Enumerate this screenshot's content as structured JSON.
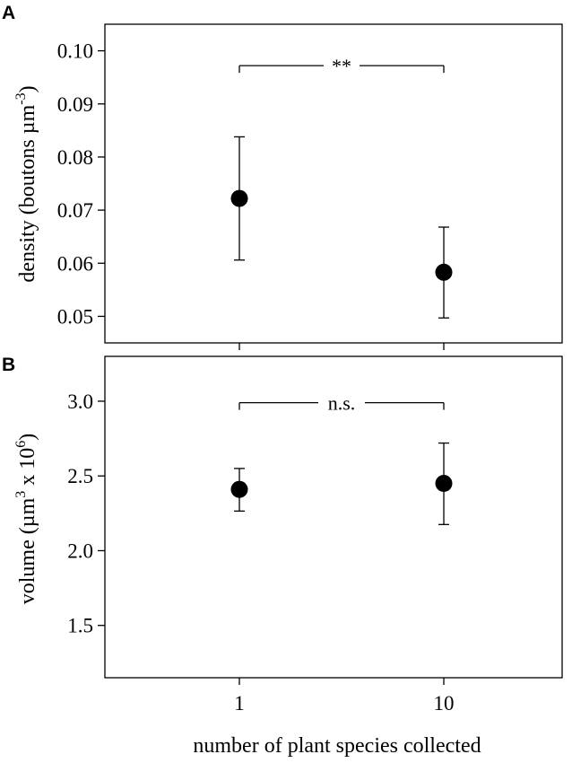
{
  "figure": {
    "xlabel": "number of plant species collected"
  },
  "chart_data": [
    {
      "type": "scatter",
      "panel": "A",
      "ylabel": "density (boutons µm",
      "ylabel_exp": "-3",
      "ylabel_close": ")",
      "x_categories": [
        "1",
        "10"
      ],
      "ylim": [
        0.045,
        0.105
      ],
      "yticks": [
        "0.05",
        "0.06",
        "0.07",
        "0.08",
        "0.09",
        "0.10"
      ],
      "series": [
        {
          "points": [
            {
              "x": "1",
              "y": 0.0722,
              "lo": 0.0606,
              "hi": 0.0838
            },
            {
              "x": "10",
              "y": 0.0583,
              "lo": 0.0497,
              "hi": 0.0668
            }
          ]
        }
      ],
      "significance": {
        "label": "**",
        "y": 0.0972
      }
    },
    {
      "type": "scatter",
      "panel": "B",
      "ylabel": "volume (µm",
      "ylabel_exp1": "3",
      "ylabel_mid": " x 10",
      "ylabel_exp2": "6",
      "ylabel_close": ")",
      "x_categories": [
        "1",
        "10"
      ],
      "ylim": [
        1.15,
        3.3
      ],
      "yticks": [
        "1.5",
        "2.0",
        "2.5",
        "3.0"
      ],
      "series": [
        {
          "points": [
            {
              "x": "1",
              "y": 2.41,
              "lo": 2.265,
              "hi": 2.55
            },
            {
              "x": "10",
              "y": 2.45,
              "lo": 2.175,
              "hi": 2.72
            }
          ]
        }
      ],
      "significance": {
        "label": "n.s.",
        "y": 2.99
      }
    }
  ]
}
